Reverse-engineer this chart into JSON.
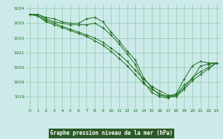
{
  "title": "Graphe pression niveau de la mer (hPa)",
  "background_color": "#cceae8",
  "grid_color": "#99ccbb",
  "line_color": "#1a6b1a",
  "title_bg": "#336633",
  "title_fg": "#ffffff",
  "xlim": [
    -0.5,
    23.5
  ],
  "ylim": [
    1017.2,
    1024.3
  ],
  "yticks": [
    1018,
    1019,
    1020,
    1021,
    1022,
    1023,
    1024
  ],
  "xticks": [
    0,
    1,
    2,
    3,
    4,
    5,
    6,
    7,
    8,
    9,
    10,
    11,
    12,
    13,
    14,
    15,
    16,
    17,
    18,
    19,
    20,
    21,
    22,
    23
  ],
  "series": [
    {
      "x": [
        0,
        1,
        2,
        3,
        4,
        5,
        6,
        7,
        8,
        9,
        10,
        11,
        12,
        13,
        14,
        15,
        16,
        17,
        18,
        19,
        20,
        21,
        22,
        23
      ],
      "y": [
        1023.6,
        1023.6,
        1023.4,
        1023.3,
        1023.1,
        1023.0,
        1023.0,
        1023.3,
        1023.4,
        1023.1,
        1022.4,
        1021.8,
        1021.1,
        1020.5,
        1019.3,
        1018.6,
        1018.1,
        1018.0,
        1018.2,
        1019.2,
        1020.1,
        1020.4,
        1020.3,
        1020.3
      ]
    },
    {
      "x": [
        0,
        1,
        2,
        3,
        4,
        5,
        6,
        7,
        8,
        9,
        10,
        11,
        12,
        13,
        14,
        15,
        16,
        17,
        18,
        19,
        20,
        21,
        22,
        23
      ],
      "y": [
        1023.6,
        1023.6,
        1023.3,
        1023.1,
        1023.0,
        1022.9,
        1022.9,
        1022.9,
        1023.0,
        1022.7,
        1022.2,
        1021.6,
        1020.9,
        1020.2,
        1019.0,
        1018.3,
        1018.0,
        1017.9,
        1018.1,
        1018.8,
        1019.2,
        1020.1,
        1020.2,
        1020.3
      ]
    },
    {
      "x": [
        0,
        1,
        2,
        3,
        4,
        5,
        6,
        7,
        8,
        9,
        10,
        11,
        12,
        13,
        14,
        15,
        16,
        17,
        18,
        19,
        20,
        21,
        22,
        23
      ],
      "y": [
        1023.6,
        1023.5,
        1023.2,
        1023.0,
        1022.8,
        1022.6,
        1022.4,
        1022.2,
        1022.0,
        1021.7,
        1021.3,
        1020.9,
        1020.4,
        1019.8,
        1019.2,
        1018.7,
        1018.4,
        1018.1,
        1018.1,
        1018.6,
        1019.3,
        1019.7,
        1020.0,
        1020.3
      ]
    },
    {
      "x": [
        0,
        1,
        2,
        3,
        4,
        5,
        6,
        7,
        8,
        9,
        10,
        11,
        12,
        13,
        14,
        15,
        16,
        17,
        18,
        19,
        20,
        21,
        22,
        23
      ],
      "y": [
        1023.6,
        1023.5,
        1023.1,
        1022.9,
        1022.7,
        1022.5,
        1022.3,
        1022.1,
        1021.8,
        1021.5,
        1021.1,
        1020.6,
        1020.1,
        1019.5,
        1018.9,
        1018.5,
        1018.2,
        1018.0,
        1018.0,
        1018.5,
        1019.1,
        1019.5,
        1019.9,
        1020.3
      ]
    }
  ]
}
